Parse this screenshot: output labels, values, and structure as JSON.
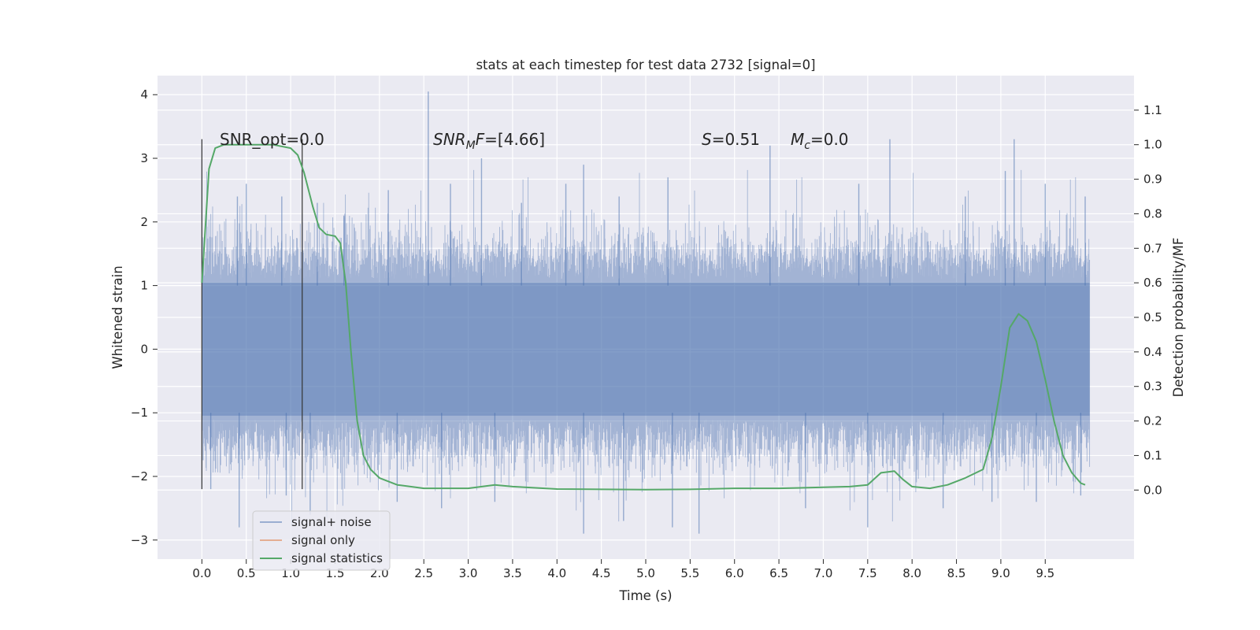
{
  "chart_data": {
    "type": "line",
    "title": "stats at each timestep for test data 2732 [signal=0]",
    "xlabel": "Time (s)",
    "ylabel": "Whitened strain",
    "y2label": "Detection probability/MF",
    "xlim": [
      -0.5,
      10.5
    ],
    "ylim": [
      -3.3,
      4.3
    ],
    "y2lim": [
      -0.2,
      1.2
    ],
    "x_ticks": [
      0.0,
      0.5,
      1.0,
      1.5,
      2.0,
      2.5,
      3.0,
      3.5,
      4.0,
      4.5,
      5.0,
      5.5,
      6.0,
      6.5,
      7.0,
      7.5,
      8.0,
      8.5,
      9.0,
      9.5
    ],
    "x_tick_labels": [
      "0.0",
      "0.5",
      "1.0",
      "1.5",
      "2.0",
      "2.5",
      "3.0",
      "3.5",
      "4.0",
      "4.5",
      "5.0",
      "5.5",
      "6.0",
      "6.5",
      "7.0",
      "7.5",
      "8.0",
      "8.5",
      "9.0",
      "9.5"
    ],
    "y_ticks": [
      -3,
      -2,
      -1,
      0,
      1,
      2,
      3,
      4
    ],
    "y_tick_labels": [
      "−3",
      "−2",
      "−1",
      "0",
      "1",
      "2",
      "3",
      "4"
    ],
    "y2_ticks": [
      0.0,
      0.1,
      0.2,
      0.3,
      0.4,
      0.5,
      0.6,
      0.7,
      0.8,
      0.9,
      1.0,
      1.1
    ],
    "y2_tick_labels": [
      "0.0",
      "0.1",
      "0.2",
      "0.3",
      "0.4",
      "0.5",
      "0.6",
      "0.7",
      "0.8",
      "0.9",
      "1.0",
      "1.1"
    ],
    "grid": true,
    "legend_position": "bottom-left",
    "colors": {
      "background": "#eaeaf2",
      "grid": "#ffffff",
      "noise": "#4c72b0",
      "signal": "#dd8452",
      "stats": "#55a868",
      "marker": "#333333"
    },
    "annotations": {
      "snr_opt": "SNR_opt=0.0",
      "snr_mf_var": "SNR",
      "snr_mf_sub": "M",
      "snr_mf_var2": "F",
      "snr_mf_val": "=[4.66]",
      "s_var": "S",
      "s_val": "=0.51",
      "mc_var": "M",
      "mc_sub": "c",
      "mc_val": "=0.0"
    },
    "marker_lines": [
      {
        "x": 0.0,
        "y_range": [
          -2.2,
          3.3
        ]
      },
      {
        "x": 1.13,
        "y_range": [
          -2.2,
          3.3
        ]
      }
    ],
    "series": [
      {
        "name": "signal+ noise",
        "style": "noise-band",
        "x_range": [
          0.0,
          10.0
        ],
        "typical_envelope": [
          -1.1,
          1.1
        ],
        "peaks": [
          {
            "x": 0.4,
            "y": 2.4
          },
          {
            "x": 0.5,
            "y": 2.6
          },
          {
            "x": 0.9,
            "y": 2.4
          },
          {
            "x": 1.3,
            "y": 2.3
          },
          {
            "x": 1.6,
            "y": 2.1
          },
          {
            "x": 2.1,
            "y": 2.5
          },
          {
            "x": 2.55,
            "y": 4.05
          },
          {
            "x": 2.8,
            "y": 2.6
          },
          {
            "x": 3.15,
            "y": 3.0
          },
          {
            "x": 3.6,
            "y": 2.3
          },
          {
            "x": 4.1,
            "y": 2.6
          },
          {
            "x": 4.3,
            "y": 2.9
          },
          {
            "x": 4.7,
            "y": 2.4
          },
          {
            "x": 5.25,
            "y": 2.7
          },
          {
            "x": 6.4,
            "y": 3.2
          },
          {
            "x": 7.4,
            "y": 2.6
          },
          {
            "x": 7.75,
            "y": 3.3
          },
          {
            "x": 8.6,
            "y": 2.4
          },
          {
            "x": 9.05,
            "y": 2.8
          },
          {
            "x": 9.15,
            "y": 3.3
          },
          {
            "x": 9.5,
            "y": 2.6
          },
          {
            "x": 9.95,
            "y": 2.4
          }
        ],
        "troughs": [
          {
            "x": 0.1,
            "y": -2.2
          },
          {
            "x": 0.42,
            "y": -2.8
          },
          {
            "x": 0.95,
            "y": -2.3
          },
          {
            "x": 1.22,
            "y": -2.6
          },
          {
            "x": 2.2,
            "y": -2.4
          },
          {
            "x": 2.7,
            "y": -2.5
          },
          {
            "x": 3.3,
            "y": -2.4
          },
          {
            "x": 4.3,
            "y": -2.9
          },
          {
            "x": 4.75,
            "y": -2.7
          },
          {
            "x": 5.3,
            "y": -2.8
          },
          {
            "x": 5.6,
            "y": -2.9
          },
          {
            "x": 6.8,
            "y": -2.5
          },
          {
            "x": 7.5,
            "y": -2.8
          },
          {
            "x": 8.35,
            "y": -2.5
          },
          {
            "x": 8.9,
            "y": -2.4
          },
          {
            "x": 9.4,
            "y": -2.4
          },
          {
            "x": 9.9,
            "y": -2.3
          }
        ]
      },
      {
        "name": "signal only",
        "x": [],
        "y": []
      },
      {
        "name": "signal statistics",
        "axis": "right",
        "x": [
          0.0,
          0.08,
          0.15,
          0.25,
          0.4,
          0.6,
          0.8,
          1.0,
          1.08,
          1.15,
          1.25,
          1.32,
          1.4,
          1.5,
          1.56,
          1.62,
          1.68,
          1.75,
          1.82,
          1.9,
          2.0,
          2.2,
          2.5,
          3.0,
          3.3,
          3.5,
          4.0,
          5.0,
          5.5,
          6.0,
          6.5,
          7.0,
          7.3,
          7.5,
          7.65,
          7.8,
          7.9,
          8.0,
          8.2,
          8.4,
          8.6,
          8.8,
          8.9,
          9.0,
          9.1,
          9.2,
          9.3,
          9.4,
          9.5,
          9.6,
          9.7,
          9.8,
          9.9,
          9.95
        ],
        "y": [
          0.6,
          0.93,
          0.99,
          1.0,
          1.0,
          1.0,
          1.0,
          0.99,
          0.97,
          0.92,
          0.82,
          0.76,
          0.74,
          0.735,
          0.715,
          0.6,
          0.4,
          0.2,
          0.1,
          0.06,
          0.035,
          0.015,
          0.005,
          0.005,
          0.015,
          0.01,
          0.003,
          0.001,
          0.002,
          0.005,
          0.005,
          0.008,
          0.01,
          0.015,
          0.05,
          0.055,
          0.03,
          0.01,
          0.005,
          0.015,
          0.035,
          0.06,
          0.15,
          0.3,
          0.47,
          0.51,
          0.49,
          0.43,
          0.32,
          0.2,
          0.1,
          0.05,
          0.02,
          0.015
        ]
      }
    ]
  }
}
